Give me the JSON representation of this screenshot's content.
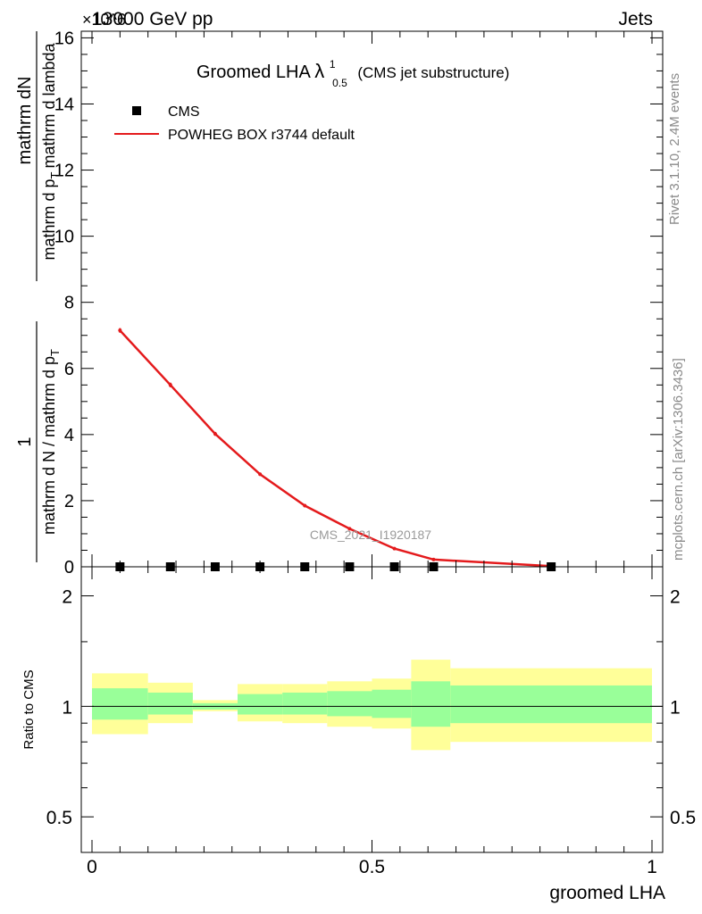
{
  "header": {
    "energy_label": "13000 GeV pp",
    "process_label": "Jets",
    "exponent_label": "×10^6"
  },
  "side_text": {
    "rivet": "Rivet 3.1.10,  2.4M events",
    "mcplots": "mcplots.cern.ch [arXiv:1306.3436]"
  },
  "watermark": "CMS_2021_I1920187",
  "chart_data": [
    {
      "type": "line",
      "title": "Groomed LHA",
      "title_symbol": "λ",
      "title_superscript": "1",
      "title_subscript": "0.5",
      "title_suffix": "(CMS jet substructure)",
      "ylabel": "1/(mathrm d N / mathrm d p_T) · mathrm dN / (mathrm d p_T mathrm d lambda)",
      "ylabel_parts": [
        "1",
        "mathrm dN",
        "mathrm d N / mathrm d p",
        "T",
        "mathrm d p",
        "T",
        "mathrm d lambda"
      ],
      "ylim": [
        0,
        16.2
      ],
      "xlim": [
        -0.02,
        1.02
      ],
      "y_ticks": [
        0,
        2,
        4,
        6,
        8,
        10,
        12,
        14,
        16
      ],
      "y_scale_exponent": 6,
      "legend_position": "top-left",
      "series": [
        {
          "name": "CMS",
          "marker": "square",
          "color": "#000000",
          "x": [
            0.05,
            0.14,
            0.22,
            0.3,
            0.38,
            0.46,
            0.54,
            0.61,
            0.82
          ],
          "values": [
            0,
            0,
            0,
            0,
            0,
            0,
            0,
            0,
            0
          ]
        },
        {
          "name": "POWHEG BOX r3744 default",
          "color": "#e41a1c",
          "x": [
            0.05,
            0.14,
            0.22,
            0.3,
            0.38,
            0.46,
            0.54,
            0.61,
            0.82
          ],
          "values": [
            7.15,
            5.5,
            4.02,
            2.8,
            1.85,
            1.15,
            0.55,
            0.22,
            0.02
          ],
          "errors": [
            0.07,
            0.07,
            0.06,
            0.05,
            0.04,
            0.03,
            0.02,
            0.01,
            0.01
          ]
        }
      ]
    },
    {
      "type": "area",
      "ylabel": "Ratio to CMS",
      "xlabel": "groomed LHA",
      "log_scale_y": true,
      "ylim": [
        0.4,
        2.4
      ],
      "x_ticks": [
        0,
        0.5,
        1
      ],
      "x_tick_labels": [
        "0",
        "0.5",
        "1"
      ],
      "y_ticks": [
        0.5,
        1,
        2
      ],
      "y_tick_labels": [
        "0.5",
        "1",
        "2"
      ],
      "reference_line": 1,
      "bins": [
        {
          "x0": 0.0,
          "x1": 0.1,
          "inner": [
            0.92,
            1.12
          ],
          "outer": [
            0.84,
            1.23
          ]
        },
        {
          "x0": 0.1,
          "x1": 0.18,
          "inner": [
            0.95,
            1.09
          ],
          "outer": [
            0.9,
            1.16
          ]
        },
        {
          "x0": 0.18,
          "x1": 0.26,
          "inner": [
            0.98,
            1.02
          ],
          "outer": [
            0.97,
            1.04
          ]
        },
        {
          "x0": 0.26,
          "x1": 0.34,
          "inner": [
            0.95,
            1.08
          ],
          "outer": [
            0.91,
            1.15
          ]
        },
        {
          "x0": 0.34,
          "x1": 0.42,
          "inner": [
            0.95,
            1.09
          ],
          "outer": [
            0.9,
            1.15
          ]
        },
        {
          "x0": 0.42,
          "x1": 0.5,
          "inner": [
            0.94,
            1.1
          ],
          "outer": [
            0.88,
            1.17
          ]
        },
        {
          "x0": 0.5,
          "x1": 0.57,
          "inner": [
            0.93,
            1.11
          ],
          "outer": [
            0.87,
            1.19
          ]
        },
        {
          "x0": 0.57,
          "x1": 0.64,
          "inner": [
            0.88,
            1.17
          ],
          "outer": [
            0.76,
            1.34
          ]
        },
        {
          "x0": 0.64,
          "x1": 1.0,
          "inner": [
            0.9,
            1.14
          ],
          "outer": [
            0.8,
            1.27
          ]
        }
      ],
      "colors": {
        "inner": "#99ff99",
        "outer": "#ffff99"
      }
    }
  ]
}
